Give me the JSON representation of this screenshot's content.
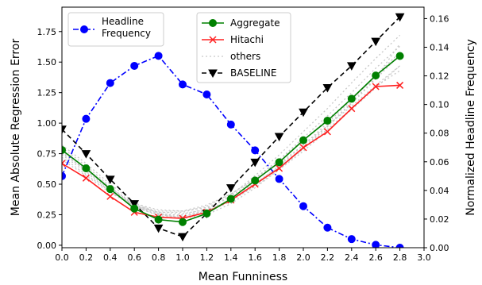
{
  "chart_data": {
    "type": "line",
    "xlabel": "Mean Funniness",
    "ylabel_left": "Mean Absolute Regression Error",
    "ylabel_right": "Normalized Headline Frequency",
    "xlim": [
      0.0,
      3.0
    ],
    "ylim_left": [
      -0.02,
      1.95
    ],
    "ylim_right": [
      0.0,
      0.168
    ],
    "x_ticks": [
      "0.0",
      "0.2",
      "0.4",
      "0.6",
      "0.8",
      "1.0",
      "1.2",
      "1.4",
      "1.6",
      "1.8",
      "2.0",
      "2.2",
      "2.4",
      "2.6",
      "2.8",
      "3.0"
    ],
    "y_left_ticks": [
      "0.00",
      "0.25",
      "0.50",
      "0.75",
      "1.00",
      "1.25",
      "1.50",
      "1.75"
    ],
    "y_right_ticks": [
      "0.00",
      "0.02",
      "0.04",
      "0.06",
      "0.08",
      "0.10",
      "0.12",
      "0.14",
      "0.16"
    ],
    "x": [
      0.0,
      0.2,
      0.4,
      0.6,
      0.8,
      1.0,
      1.2,
      1.4,
      1.6,
      1.8,
      2.0,
      2.2,
      2.4,
      2.6,
      2.8
    ],
    "series": [
      {
        "name": "Aggregate",
        "axis": "left",
        "color": "#008000",
        "marker": "circle",
        "dash": "solid",
        "values": [
          0.78,
          0.63,
          0.46,
          0.3,
          0.21,
          0.19,
          0.26,
          0.38,
          0.53,
          0.68,
          0.86,
          1.02,
          1.2,
          1.39,
          1.55
        ]
      },
      {
        "name": "Hitachi",
        "axis": "left",
        "color": "#ff2020",
        "marker": "x",
        "dash": "solid",
        "values": [
          0.67,
          0.55,
          0.4,
          0.27,
          0.23,
          0.22,
          0.27,
          0.37,
          0.5,
          0.63,
          0.8,
          0.93,
          1.12,
          1.3,
          1.31
        ]
      },
      {
        "name": "BASELINE",
        "axis": "left",
        "color": "#000000",
        "marker": "triangle-down",
        "dash": "dashed",
        "values": [
          0.95,
          0.75,
          0.54,
          0.34,
          0.14,
          0.07,
          0.26,
          0.47,
          0.68,
          0.89,
          1.09,
          1.29,
          1.47,
          1.67,
          1.87
        ]
      },
      {
        "name": "Headline Frequency",
        "axis": "right",
        "color": "#0000ff",
        "marker": "circle",
        "dash": "dashdot",
        "values": [
          0.05,
          0.09,
          0.115,
          0.127,
          0.134,
          0.114,
          0.107,
          0.086,
          0.068,
          0.048,
          0.029,
          0.014,
          0.006,
          0.002,
          0.0
        ]
      }
    ],
    "others": {
      "name": "others",
      "axis": "left",
      "color": "#c8c8c8",
      "dash": "dotted",
      "lines": [
        [
          0.8,
          0.65,
          0.48,
          0.32,
          0.24,
          0.23,
          0.29,
          0.41,
          0.57,
          0.74,
          0.93,
          1.12,
          1.33,
          1.53,
          1.72
        ],
        [
          0.76,
          0.61,
          0.45,
          0.31,
          0.25,
          0.25,
          0.3,
          0.4,
          0.54,
          0.7,
          0.88,
          1.06,
          1.25,
          1.45,
          1.63
        ],
        [
          0.74,
          0.6,
          0.44,
          0.32,
          0.27,
          0.27,
          0.32,
          0.42,
          0.55,
          0.7,
          0.86,
          1.03,
          1.2,
          1.38,
          1.56
        ],
        [
          0.72,
          0.58,
          0.44,
          0.33,
          0.28,
          0.28,
          0.33,
          0.42,
          0.54,
          0.67,
          0.82,
          0.98,
          1.14,
          1.31,
          1.47
        ],
        [
          0.78,
          0.63,
          0.47,
          0.33,
          0.26,
          0.24,
          0.28,
          0.37,
          0.5,
          0.65,
          0.82,
          1.0,
          1.19,
          1.39,
          1.58
        ],
        [
          0.7,
          0.57,
          0.43,
          0.32,
          0.27,
          0.26,
          0.29,
          0.37,
          0.48,
          0.62,
          0.77,
          0.94,
          1.11,
          1.29,
          1.47
        ],
        [
          0.82,
          0.67,
          0.5,
          0.35,
          0.26,
          0.22,
          0.25,
          0.34,
          0.47,
          0.62,
          0.79,
          0.97,
          1.16,
          1.36,
          1.56
        ],
        [
          0.75,
          0.62,
          0.47,
          0.34,
          0.29,
          0.28,
          0.31,
          0.39,
          0.51,
          0.64,
          0.79,
          0.95,
          1.12,
          1.3,
          1.43
        ],
        [
          0.77,
          0.62,
          0.46,
          0.32,
          0.25,
          0.23,
          0.27,
          0.36,
          0.49,
          0.64,
          0.8,
          0.98,
          1.17,
          1.37,
          1.65
        ]
      ]
    },
    "legends": [
      {
        "placement": "top-left",
        "entries": [
          {
            "label_lines": [
              "Headline",
              "Frequency"
            ],
            "series": "Headline Frequency"
          }
        ]
      },
      {
        "placement": "top-center",
        "entries": [
          {
            "label_lines": [
              "Aggregate"
            ],
            "series": "Aggregate"
          },
          {
            "label_lines": [
              "Hitachi"
            ],
            "series": "Hitachi"
          },
          {
            "label_lines": [
              "others"
            ],
            "series": "others"
          },
          {
            "label_lines": [
              "BASELINE"
            ],
            "series": "BASELINE"
          }
        ]
      }
    ],
    "grid": false
  }
}
